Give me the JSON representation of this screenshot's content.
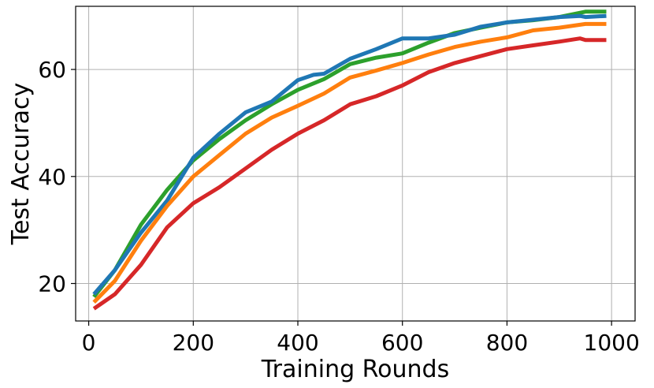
{
  "chart_data": {
    "type": "line",
    "title": "",
    "xlabel": "Training Rounds",
    "ylabel": "Test Accuracy",
    "xlim": [
      -25,
      1045
    ],
    "ylim": [
      13,
      71.8
    ],
    "xticks": [
      0,
      200,
      400,
      600,
      800,
      1000
    ],
    "yticks": [
      20,
      40,
      60
    ],
    "grid": true,
    "series": [
      {
        "color": "#2ca02c",
        "x": [
          10,
          50,
          100,
          150,
          200,
          250,
          300,
          350,
          400,
          450,
          500,
          550,
          600,
          650,
          700,
          750,
          800,
          850,
          900,
          950,
          990
        ],
        "y": [
          17.5,
          22.5,
          31.0,
          37.5,
          43.0,
          47.0,
          50.5,
          53.5,
          56.2,
          58.2,
          61.0,
          62.2,
          63.0,
          65.0,
          66.8,
          67.8,
          68.8,
          69.2,
          69.8,
          70.8,
          70.8
        ]
      },
      {
        "color": "#1f77b4",
        "x": [
          10,
          50,
          100,
          150,
          200,
          250,
          300,
          350,
          400,
          430,
          450,
          500,
          550,
          600,
          650,
          700,
          750,
          800,
          850,
          900,
          940,
          950,
          990
        ],
        "y": [
          18.0,
          22.5,
          29.5,
          35.5,
          43.5,
          48.0,
          52.0,
          54.0,
          58.0,
          59.0,
          59.2,
          62.0,
          63.8,
          65.8,
          65.8,
          66.5,
          68.0,
          68.8,
          69.3,
          69.8,
          70.0,
          69.8,
          70.0
        ]
      },
      {
        "color": "#ff7f0e",
        "x": [
          10,
          50,
          100,
          150,
          200,
          250,
          300,
          350,
          400,
          450,
          500,
          550,
          600,
          650,
          700,
          750,
          800,
          850,
          900,
          950,
          990
        ],
        "y": [
          16.5,
          20.5,
          28.0,
          34.5,
          40.0,
          44.0,
          48.0,
          51.0,
          53.2,
          55.5,
          58.5,
          59.8,
          61.2,
          62.8,
          64.2,
          65.2,
          66.0,
          67.3,
          67.8,
          68.5,
          68.5
        ]
      },
      {
        "color": "#d62728",
        "x": [
          10,
          50,
          100,
          150,
          200,
          250,
          300,
          350,
          400,
          450,
          500,
          550,
          600,
          650,
          700,
          750,
          800,
          850,
          900,
          940,
          950,
          990
        ],
        "y": [
          15.3,
          18.0,
          23.5,
          30.5,
          35.0,
          38.0,
          41.5,
          45.0,
          48.0,
          50.5,
          53.5,
          55.0,
          57.0,
          59.5,
          61.2,
          62.5,
          63.8,
          64.5,
          65.2,
          65.8,
          65.5,
          65.5
        ]
      }
    ]
  }
}
